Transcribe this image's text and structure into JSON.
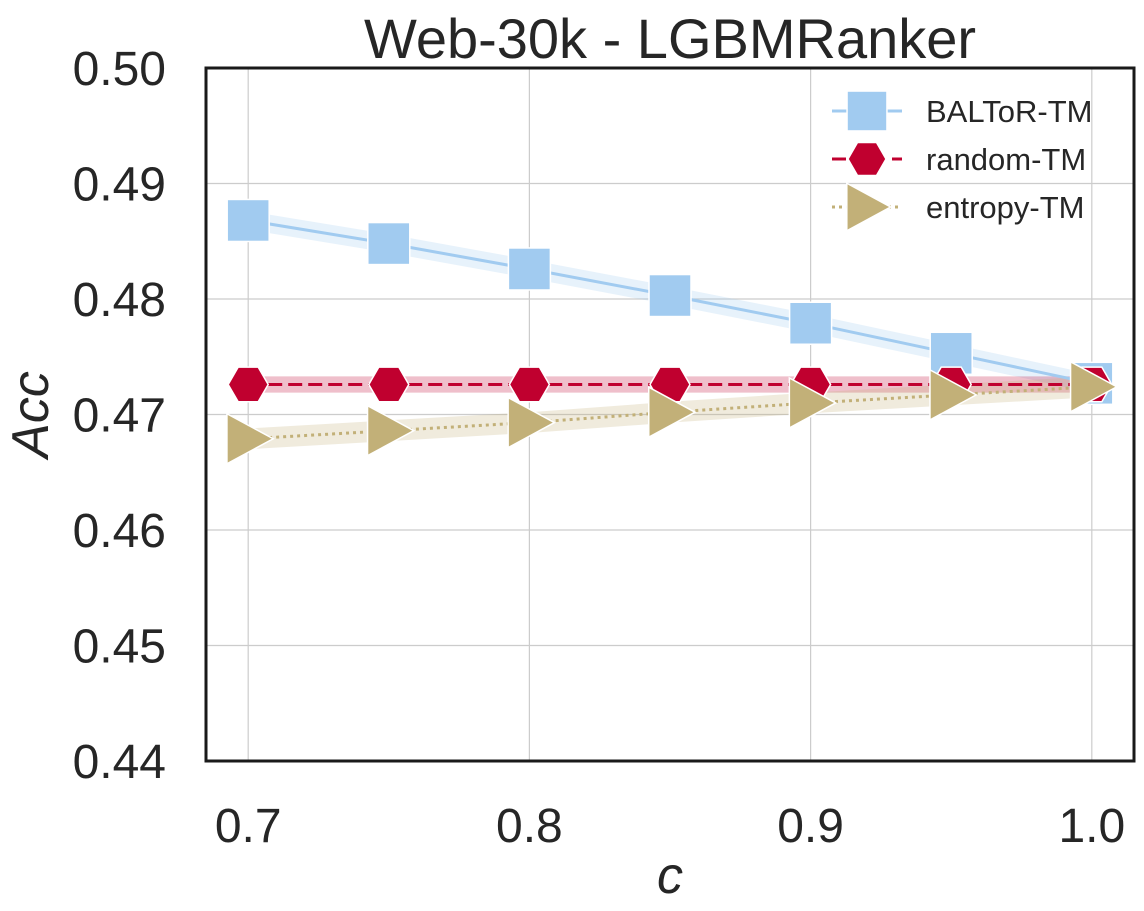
{
  "chart_data": {
    "type": "line",
    "title": "Web-30k - LGBMRanker",
    "xlabel": "c",
    "ylabel": "Acc",
    "xlim": [
      0.685,
      1.015
    ],
    "ylim": [
      0.44,
      0.5
    ],
    "xticks": [
      0.7,
      0.8,
      0.9,
      1.0
    ],
    "xtick_labels": [
      "0.7",
      "0.8",
      "0.9",
      "1.0"
    ],
    "yticks": [
      0.44,
      0.45,
      0.46,
      0.47,
      0.48,
      0.49,
      0.5
    ],
    "ytick_labels": [
      "0.44",
      "0.45",
      "0.46",
      "0.47",
      "0.48",
      "0.49",
      "0.50"
    ],
    "grid": true,
    "legend_position": "top-right",
    "x": [
      0.7,
      0.75,
      0.8,
      0.85,
      0.9,
      0.95,
      1.0
    ],
    "series": [
      {
        "name": "BALToR-TM",
        "color": "#a1cbf0",
        "marker": "square",
        "linestyle": "solid",
        "values": [
          0.4868,
          0.4848,
          0.4826,
          0.4803,
          0.4779,
          0.4753,
          0.4727
        ],
        "band": 0.0008
      },
      {
        "name": "random-TM",
        "color": "#c0002f",
        "marker": "hexagon",
        "linestyle": "dashed",
        "values": [
          0.4726,
          0.4726,
          0.4726,
          0.4726,
          0.4726,
          0.4726,
          0.4726
        ],
        "band": 0.0007
      },
      {
        "name": "entropy-TM",
        "color": "#c2b078",
        "marker": "triangle-right",
        "linestyle": "dotted",
        "values": [
          0.4679,
          0.4686,
          0.4693,
          0.4702,
          0.471,
          0.4717,
          0.4724
        ],
        "band": 0.0009
      }
    ]
  }
}
